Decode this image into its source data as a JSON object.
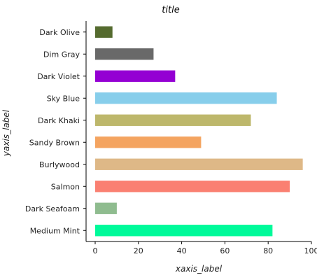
{
  "chart_data": {
    "type": "bar",
    "orientation": "horizontal",
    "title": "title",
    "xlabel": "xaxis_label",
    "ylabel": "yaxis_label",
    "xlim": [
      0,
      100
    ],
    "xticks": [
      0,
      20,
      40,
      60,
      80,
      100
    ],
    "xtick_labels": [
      "0",
      "20",
      "40",
      "60",
      "80",
      "100"
    ],
    "grid": false,
    "categories": [
      "Medium Mint",
      "Dark Seafoam",
      "Salmon",
      "Burlywood",
      "Sandy Brown",
      "Dark Khaki",
      "Sky Blue",
      "Dark Violet",
      "Dim Gray",
      "Dark Olive"
    ],
    "values": [
      82,
      10,
      90,
      96,
      49,
      72,
      84,
      37,
      27,
      8
    ],
    "colors": [
      "#00fa9a",
      "#8fbc8f",
      "#fa8072",
      "#deb887",
      "#f4a460",
      "#bdb76b",
      "#87ceeb",
      "#9400d3",
      "#696969",
      "#556b2f"
    ]
  }
}
